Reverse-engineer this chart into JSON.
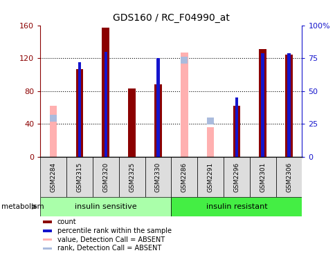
{
  "title": "GDS160 / RC_F04990_at",
  "samples": [
    "GSM2284",
    "GSM2315",
    "GSM2320",
    "GSM2325",
    "GSM2330",
    "GSM2286",
    "GSM2291",
    "GSM2296",
    "GSM2301",
    "GSM2306"
  ],
  "count": [
    null,
    107,
    157,
    83,
    88,
    null,
    null,
    62,
    131,
    124
  ],
  "percentile_rank": [
    null,
    115,
    128,
    null,
    120,
    null,
    null,
    72,
    126,
    126
  ],
  "value_absent": [
    62,
    null,
    null,
    null,
    null,
    127,
    36,
    null,
    null,
    null
  ],
  "rank_absent": [
    47,
    null,
    null,
    null,
    null,
    118,
    44,
    null,
    null,
    null
  ],
  "ylim_left": [
    0,
    160
  ],
  "ylim_right": [
    0,
    100
  ],
  "yticks_left": [
    0,
    40,
    80,
    120,
    160
  ],
  "yticks_right": [
    0,
    25,
    50,
    75,
    100
  ],
  "ytick_labels_left": [
    "0",
    "40",
    "80",
    "120",
    "160"
  ],
  "ytick_labels_right": [
    "0",
    "25",
    "50",
    "75",
    "100%"
  ],
  "color_count": "#8B0000",
  "color_rank": "#1414CC",
  "color_value_absent": "#FFB0B0",
  "color_rank_absent": "#AABBDD",
  "group1_label": "insulin sensitive",
  "group2_label": "insulin resistant",
  "group1_color": "#AAFFAA",
  "group2_color": "#44EE44",
  "bar_width": 0.28,
  "rank_bar_width": 0.12,
  "legend_items": [
    "count",
    "percentile rank within the sample",
    "value, Detection Call = ABSENT",
    "rank, Detection Call = ABSENT"
  ]
}
